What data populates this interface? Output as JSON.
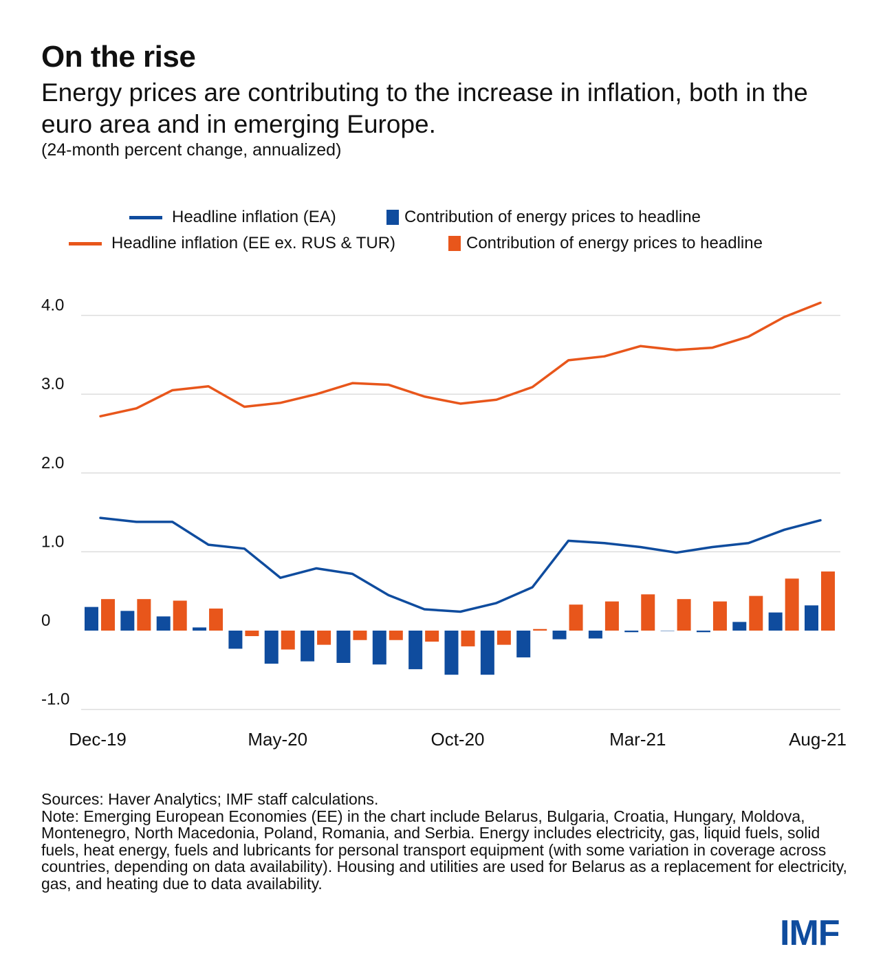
{
  "header": {
    "title": "On the rise",
    "subtitle": "Energy prices are contributing to the increase in inflation, both in the euro area and in emerging Europe.",
    "unit": "(24-month percent change, annualized)"
  },
  "colors": {
    "ea": "#0f4c9e",
    "ee": "#e8561b",
    "grid": "#dddddd",
    "logo": "#0f4c9e"
  },
  "chart_data": {
    "type": "bar",
    "title": "On the rise",
    "xlabel": "",
    "ylabel": "",
    "ylim": [
      -1.0,
      4.0
    ],
    "yticks": [
      4.0,
      3.0,
      2.0,
      1.0,
      0,
      -1.0
    ],
    "ytick_labels": [
      "4.0",
      "3.0",
      "2.0",
      "1.0",
      "0",
      "-1.0"
    ],
    "grid": true,
    "legend_position": "top",
    "categories": [
      "Dec-19",
      "Jan-20",
      "Feb-20",
      "Mar-20",
      "Apr-20",
      "May-20",
      "Jun-20",
      "Jul-20",
      "Aug-20",
      "Sep-20",
      "Oct-20",
      "Nov-20",
      "Dec-20",
      "Jan-21",
      "Feb-21",
      "Mar-21",
      "Apr-21",
      "May-21",
      "Jun-21",
      "Jul-21",
      "Aug-21"
    ],
    "x_tick_labels": [
      {
        "index": 0,
        "label": "Dec-19"
      },
      {
        "index": 5,
        "label": "May-20"
      },
      {
        "index": 10,
        "label": "Oct-20"
      },
      {
        "index": 15,
        "label": "Mar-21"
      },
      {
        "index": 20,
        "label": "Aug-21"
      }
    ],
    "series": [
      {
        "name": "Headline inflation (EA)",
        "kind": "line",
        "color": "#0f4c9e",
        "values": [
          1.43,
          1.38,
          1.38,
          1.09,
          1.04,
          0.67,
          0.79,
          0.72,
          0.45,
          0.27,
          0.24,
          0.35,
          0.55,
          1.14,
          1.11,
          1.06,
          0.99,
          1.06,
          1.11,
          1.28,
          1.4
        ]
      },
      {
        "name": "Contribution of energy prices to headline",
        "kind": "bar",
        "color": "#0f4c9e",
        "values": [
          0.3,
          0.25,
          0.18,
          0.04,
          -0.23,
          -0.42,
          -0.39,
          -0.41,
          -0.43,
          -0.49,
          -0.56,
          -0.56,
          -0.34,
          -0.11,
          -0.1,
          -0.02,
          0.0,
          -0.02,
          0.11,
          0.23,
          0.32
        ]
      },
      {
        "name": "Headline inflation (EE ex. RUS & TUR)",
        "kind": "line",
        "color": "#e8561b",
        "values": [
          2.72,
          2.82,
          3.05,
          3.1,
          2.84,
          2.89,
          3.0,
          3.14,
          3.12,
          2.97,
          2.88,
          2.93,
          3.09,
          3.43,
          3.48,
          3.61,
          3.56,
          3.59,
          3.73,
          3.98,
          4.16
        ]
      },
      {
        "name": "Contribution of energy prices to headline",
        "kind": "bar",
        "color": "#e8561b",
        "values": [
          0.4,
          0.4,
          0.38,
          0.28,
          -0.07,
          -0.24,
          -0.18,
          -0.12,
          -0.12,
          -0.14,
          -0.2,
          -0.18,
          0.02,
          0.33,
          0.37,
          0.46,
          0.4,
          0.37,
          0.44,
          0.66,
          0.75
        ]
      }
    ]
  },
  "footer": {
    "sources": "Sources: Haver Analytics; IMF staff calculations.",
    "note": "Note: Emerging European Economies (EE)  in the chart include Belarus, Bulgaria, Croatia, Hungary, Moldova, Montenegro, North Macedonia, Poland, Romania, and Serbia. Energy includes electricity, gas, liquid fuels, solid fuels, heat energy, fuels and lubricants for personal transport equipment (with some variation in coverage across countries, depending on data availability). Housing and utilities are used for Belarus as a replacement for electricity, gas, and heating due to data availability.",
    "logo": "IMF"
  }
}
